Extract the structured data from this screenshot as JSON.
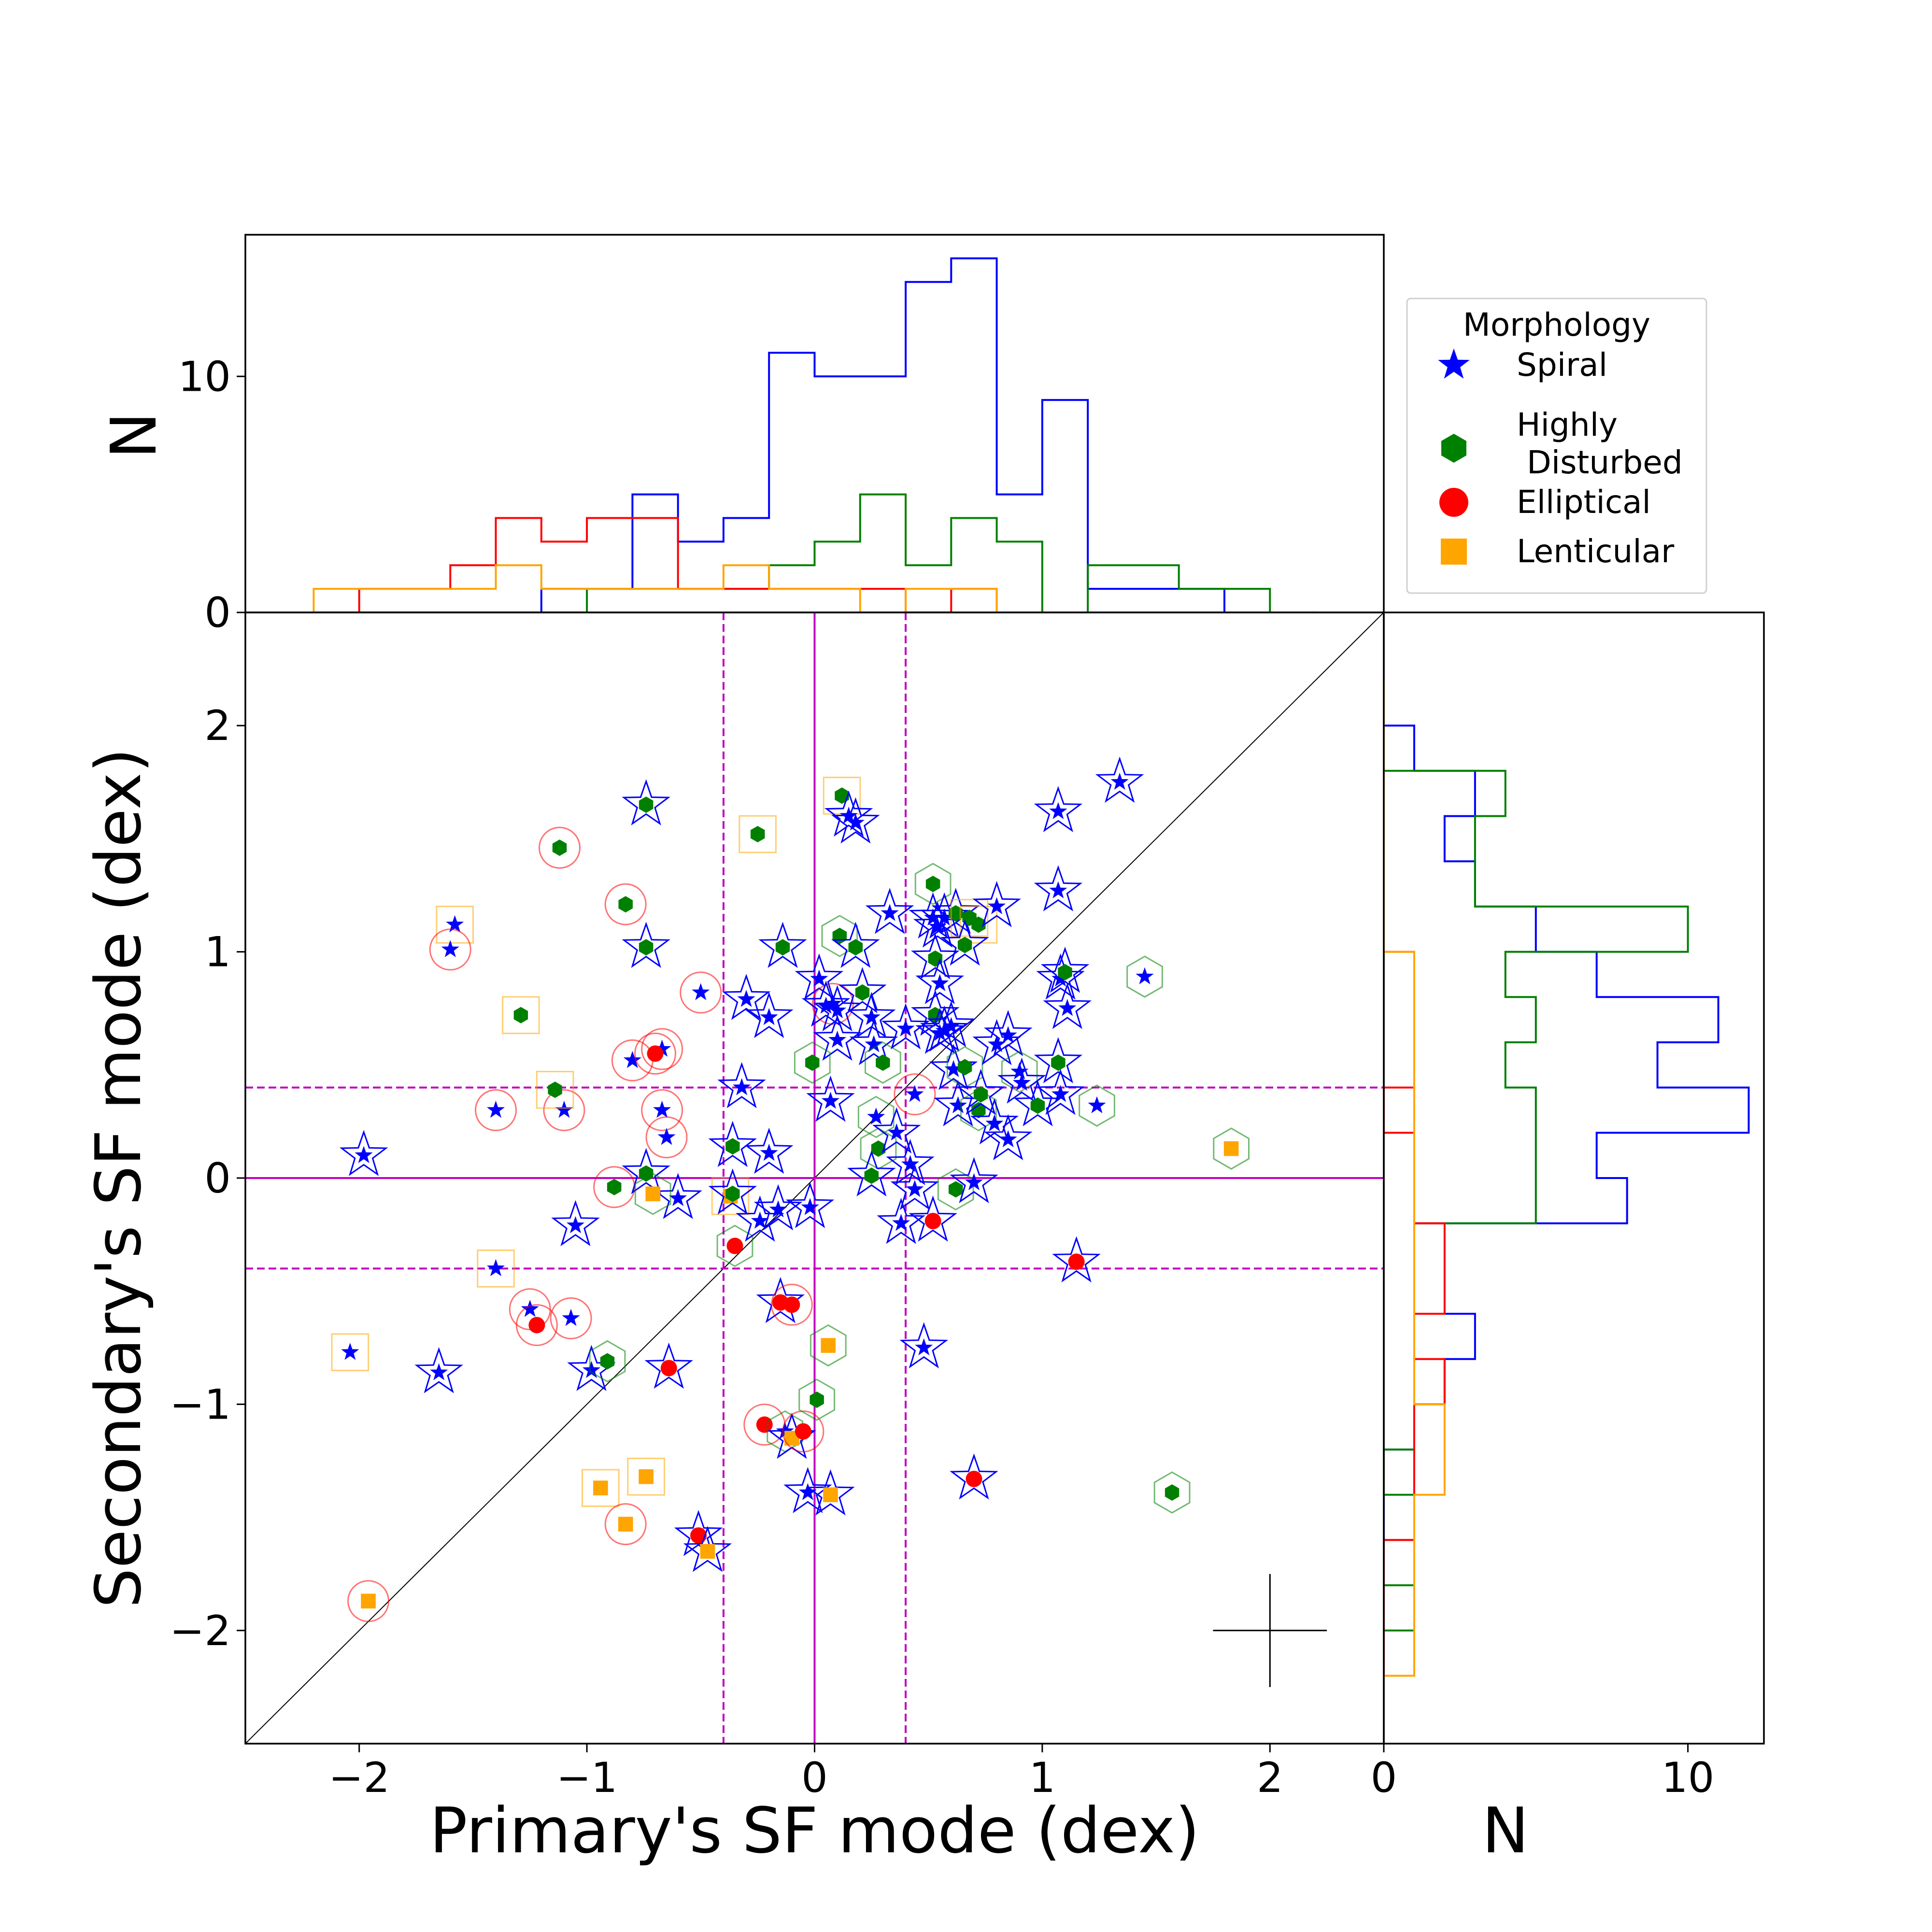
{
  "chart_data": {
    "type": "scatter",
    "xlabel": "Primary's SF mode (dex)",
    "ylabel": "Secondary's SF mode (dex)",
    "xlim": [
      -2.5,
      2.5
    ],
    "ylim": [
      -2.5,
      2.5
    ],
    "xticks": [
      "−2",
      "−1",
      "0",
      "1",
      "2"
    ],
    "yticks": [
      "−2",
      "−1",
      "0",
      "1",
      "2"
    ],
    "reference_lines": {
      "diagonal": "y = x",
      "solid_at": 0,
      "dashed_at": [
        -0.4,
        0.4
      ]
    },
    "error_cross": {
      "x": 2.0,
      "y": -2.0,
      "xerr": 0.25,
      "yerr": 0.25
    },
    "legend": {
      "title": "Morphology",
      "entries": [
        {
          "label": "Spiral",
          "marker": "star",
          "color": "#0000ff"
        },
        {
          "label": "Highly\n Disturbed",
          "marker": "hexagon",
          "color": "#008000"
        },
        {
          "label": "Elliptical",
          "marker": "circle",
          "color": "#ff0000"
        },
        {
          "label": "Lenticular",
          "marker": "square",
          "color": "#ffa500"
        }
      ]
    },
    "points": [
      {
        "x": -1.98,
        "y": 0.1,
        "in": "spiral",
        "out": "spiral"
      },
      {
        "x": -1.58,
        "y": 1.12,
        "in": "spiral",
        "out": "lenticular"
      },
      {
        "x": -1.6,
        "y": 1.01,
        "in": "spiral",
        "out": "elliptical"
      },
      {
        "x": -1.4,
        "y": 0.3,
        "in": "spiral",
        "out": "elliptical"
      },
      {
        "x": -1.4,
        "y": -0.4,
        "in": "spiral",
        "out": "lenticular"
      },
      {
        "x": -1.65,
        "y": -0.86,
        "in": "spiral",
        "out": "spiral"
      },
      {
        "x": -2.04,
        "y": -0.77,
        "in": "spiral",
        "out": "lenticular"
      },
      {
        "x": -1.25,
        "y": -0.58,
        "in": "spiral",
        "out": "elliptical"
      },
      {
        "x": -1.07,
        "y": -0.62,
        "in": "spiral",
        "out": "elliptical"
      },
      {
        "x": -1.22,
        "y": -0.65,
        "in": "elliptical",
        "out": "elliptical"
      },
      {
        "x": -1.1,
        "y": 0.3,
        "in": "spiral",
        "out": "elliptical"
      },
      {
        "x": -1.05,
        "y": -0.21,
        "in": "spiral",
        "out": "spiral"
      },
      {
        "x": -0.98,
        "y": -0.85,
        "in": "spiral",
        "out": "spiral"
      },
      {
        "x": -1.12,
        "y": 1.46,
        "in": "disturbed",
        "out": "elliptical"
      },
      {
        "x": -1.29,
        "y": 0.72,
        "in": "disturbed",
        "out": "lenticular"
      },
      {
        "x": -1.14,
        "y": 0.39,
        "in": "disturbed",
        "out": "lenticular"
      },
      {
        "x": -0.91,
        "y": -0.81,
        "in": "disturbed",
        "out": "disturbed"
      },
      {
        "x": -0.88,
        "y": -0.04,
        "in": "disturbed",
        "out": "elliptical"
      },
      {
        "x": -0.83,
        "y": 1.21,
        "in": "disturbed",
        "out": "elliptical"
      },
      {
        "x": -0.74,
        "y": 1.65,
        "in": "disturbed",
        "out": "spiral"
      },
      {
        "x": -0.74,
        "y": 1.02,
        "in": "disturbed",
        "out": "spiral"
      },
      {
        "x": -0.74,
        "y": 0.02,
        "in": "disturbed",
        "out": "spiral"
      },
      {
        "x": -0.8,
        "y": 0.52,
        "in": "spiral",
        "out": "elliptical"
      },
      {
        "x": -0.67,
        "y": 0.57,
        "in": "spiral",
        "out": "elliptical"
      },
      {
        "x": -0.7,
        "y": 0.55,
        "in": "elliptical",
        "out": "elliptical"
      },
      {
        "x": -0.67,
        "y": 0.3,
        "in": "spiral",
        "out": "elliptical"
      },
      {
        "x": -0.65,
        "y": 0.18,
        "in": "spiral",
        "out": "elliptical"
      },
      {
        "x": -0.5,
        "y": 0.82,
        "in": "spiral",
        "out": "elliptical"
      },
      {
        "x": -0.6,
        "y": -0.09,
        "in": "spiral",
        "out": "spiral"
      },
      {
        "x": -0.64,
        "y": -0.84,
        "in": "elliptical",
        "out": "spiral"
      },
      {
        "x": -0.71,
        "y": -0.07,
        "in": "lenticular",
        "out": "disturbed"
      },
      {
        "x": -0.25,
        "y": 1.52,
        "in": "disturbed",
        "out": "lenticular"
      },
      {
        "x": -0.3,
        "y": 0.79,
        "in": "spiral",
        "out": "spiral"
      },
      {
        "x": -0.2,
        "y": 0.71,
        "in": "spiral",
        "out": "spiral"
      },
      {
        "x": -0.32,
        "y": 0.4,
        "in": "spiral",
        "out": "spiral"
      },
      {
        "x": -0.36,
        "y": 0.14,
        "in": "disturbed",
        "out": "spiral"
      },
      {
        "x": -0.2,
        "y": 0.11,
        "in": "spiral",
        "out": "spiral"
      },
      {
        "x": -0.37,
        "y": -0.08,
        "in": "lenticular",
        "out": "lenticular"
      },
      {
        "x": -0.36,
        "y": -0.07,
        "in": "disturbed",
        "out": "spiral"
      },
      {
        "x": -0.35,
        "y": -0.3,
        "in": "elliptical",
        "out": "disturbed"
      },
      {
        "x": -0.24,
        "y": -0.19,
        "in": "spiral",
        "out": "spiral"
      },
      {
        "x": -0.16,
        "y": -0.14,
        "in": "spiral",
        "out": "spiral"
      },
      {
        "x": -0.14,
        "y": 1.02,
        "in": "disturbed",
        "out": "spiral"
      },
      {
        "x": -0.15,
        "y": -0.55,
        "in": "elliptical",
        "out": "spiral"
      },
      {
        "x": -0.1,
        "y": -0.56,
        "in": "elliptical",
        "out": "elliptical"
      },
      {
        "x": -0.22,
        "y": -1.09,
        "in": "elliptical",
        "out": "elliptical"
      },
      {
        "x": -0.13,
        "y": -1.12,
        "in": "spiral",
        "out": "disturbed"
      },
      {
        "x": -0.1,
        "y": -1.15,
        "in": "lenticular",
        "out": "spiral"
      },
      {
        "x": -0.05,
        "y": -1.12,
        "in": "elliptical",
        "out": "elliptical"
      },
      {
        "x": -0.03,
        "y": -1.39,
        "in": "spiral",
        "out": "spiral"
      },
      {
        "x": -0.02,
        "y": -0.13,
        "in": "spiral",
        "out": "spiral"
      },
      {
        "x": 0.01,
        "y": -0.98,
        "in": "disturbed",
        "out": "disturbed"
      },
      {
        "x": 0.06,
        "y": -0.74,
        "in": "lenticular",
        "out": "disturbed"
      },
      {
        "x": 0.07,
        "y": -1.4,
        "in": "lenticular",
        "out": "spiral"
      },
      {
        "x": -0.51,
        "y": -1.58,
        "in": "elliptical",
        "out": "spiral"
      },
      {
        "x": -0.47,
        "y": -1.65,
        "in": "lenticular",
        "out": "spiral"
      },
      {
        "x": -0.94,
        "y": -1.37,
        "in": "lenticular",
        "out": "lenticular"
      },
      {
        "x": -0.74,
        "y": -1.32,
        "in": "lenticular",
        "out": "lenticular"
      },
      {
        "x": -0.83,
        "y": -1.53,
        "in": "lenticular",
        "out": "elliptical"
      },
      {
        "x": -1.96,
        "y": -1.87,
        "in": "lenticular",
        "out": "elliptical"
      },
      {
        "x": 0.12,
        "y": 1.69,
        "in": "disturbed",
        "out": "lenticular"
      },
      {
        "x": 0.15,
        "y": 1.6,
        "in": "spiral",
        "out": "spiral"
      },
      {
        "x": 0.18,
        "y": 1.57,
        "in": "spiral",
        "out": "spiral"
      },
      {
        "x": 0.11,
        "y": 1.07,
        "in": "disturbed",
        "out": "disturbed"
      },
      {
        "x": 0.18,
        "y": 1.02,
        "in": "disturbed",
        "out": "spiral"
      },
      {
        "x": 0.02,
        "y": 0.88,
        "in": "spiral",
        "out": "spiral"
      },
      {
        "x": 0.08,
        "y": 0.77,
        "in": "spiral",
        "out": "elliptical"
      },
      {
        "x": 0.1,
        "y": 0.74,
        "in": "spiral",
        "out": "spiral"
      },
      {
        "x": 0.05,
        "y": 0.76,
        "in": "spiral",
        "out": "spiral"
      },
      {
        "x": 0.1,
        "y": 0.61,
        "in": "spiral",
        "out": "spiral"
      },
      {
        "x": -0.01,
        "y": 0.51,
        "in": "disturbed",
        "out": "disturbed"
      },
      {
        "x": 0.07,
        "y": 0.34,
        "in": "spiral",
        "out": "spiral"
      },
      {
        "x": 0.21,
        "y": 0.82,
        "in": "disturbed",
        "out": "spiral"
      },
      {
        "x": 0.25,
        "y": 0.71,
        "in": "spiral",
        "out": "spiral"
      },
      {
        "x": 0.26,
        "y": 0.59,
        "in": "spiral",
        "out": "spiral"
      },
      {
        "x": 0.3,
        "y": 0.51,
        "in": "disturbed",
        "out": "disturbed"
      },
      {
        "x": 0.27,
        "y": 0.27,
        "in": "spiral",
        "out": "disturbed"
      },
      {
        "x": 0.28,
        "y": 0.13,
        "in": "disturbed",
        "out": "disturbed"
      },
      {
        "x": 0.36,
        "y": 0.2,
        "in": "spiral",
        "out": "spiral"
      },
      {
        "x": 0.25,
        "y": 0.01,
        "in": "disturbed",
        "out": "spiral"
      },
      {
        "x": 0.33,
        "y": 1.17,
        "in": "spiral",
        "out": "spiral"
      },
      {
        "x": 0.4,
        "y": 0.66,
        "in": "spiral",
        "out": "spiral"
      },
      {
        "x": 0.44,
        "y": 0.37,
        "in": "spiral",
        "out": "elliptical"
      },
      {
        "x": 0.42,
        "y": 0.06,
        "in": "spiral",
        "out": "spiral"
      },
      {
        "x": 0.44,
        "y": -0.05,
        "in": "spiral",
        "out": "spiral"
      },
      {
        "x": 0.38,
        "y": -0.2,
        "in": "spiral",
        "out": "spiral"
      },
      {
        "x": 0.48,
        "y": -0.75,
        "in": "spiral",
        "out": "spiral"
      },
      {
        "x": 0.52,
        "y": -0.19,
        "in": "elliptical",
        "out": "spiral"
      },
      {
        "x": 0.52,
        "y": 1.3,
        "in": "disturbed",
        "out": "disturbed"
      },
      {
        "x": 0.52,
        "y": 1.15,
        "in": "spiral",
        "out": "spiral"
      },
      {
        "x": 0.54,
        "y": 1.11,
        "in": "spiral",
        "out": "spiral"
      },
      {
        "x": 0.57,
        "y": 1.15,
        "in": "spiral",
        "out": "spiral"
      },
      {
        "x": 0.53,
        "y": 0.97,
        "in": "disturbed",
        "out": "spiral"
      },
      {
        "x": 0.55,
        "y": 0.86,
        "in": "spiral",
        "out": "spiral"
      },
      {
        "x": 0.53,
        "y": 0.72,
        "in": "disturbed",
        "out": "spiral"
      },
      {
        "x": 0.55,
        "y": 0.64,
        "in": "spiral",
        "out": "spiral"
      },
      {
        "x": 0.6,
        "y": 0.67,
        "in": "spiral",
        "out": "spiral"
      },
      {
        "x": 0.57,
        "y": 0.65,
        "in": "spiral",
        "out": "spiral"
      },
      {
        "x": 0.61,
        "y": 0.48,
        "in": "spiral",
        "out": "spiral"
      },
      {
        "x": 0.63,
        "y": 0.32,
        "in": "spiral",
        "out": "spiral"
      },
      {
        "x": 0.62,
        "y": 1.17,
        "in": "disturbed",
        "out": "spiral"
      },
      {
        "x": 0.68,
        "y": 1.15,
        "in": "disturbed",
        "out": "lenticular"
      },
      {
        "x": 0.72,
        "y": 1.12,
        "in": "disturbed",
        "out": "lenticular"
      },
      {
        "x": 0.66,
        "y": 1.03,
        "in": "disturbed",
        "out": "spiral"
      },
      {
        "x": 0.66,
        "y": 0.49,
        "in": "disturbed",
        "out": "disturbed"
      },
      {
        "x": 0.72,
        "y": 0.3,
        "in": "disturbed",
        "out": "disturbed"
      },
      {
        "x": 0.73,
        "y": 0.37,
        "in": "disturbed",
        "out": "spiral"
      },
      {
        "x": 0.79,
        "y": 0.24,
        "in": "spiral",
        "out": "spiral"
      },
      {
        "x": 0.62,
        "y": -0.05,
        "in": "disturbed",
        "out": "disturbed"
      },
      {
        "x": 0.7,
        "y": -0.02,
        "in": "spiral",
        "out": "spiral"
      },
      {
        "x": 0.7,
        "y": -1.33,
        "in": "elliptical",
        "out": "spiral"
      },
      {
        "x": 0.8,
        "y": 1.2,
        "in": "spiral",
        "out": "spiral"
      },
      {
        "x": 0.8,
        "y": 0.59,
        "in": "spiral",
        "out": "spiral"
      },
      {
        "x": 0.85,
        "y": 0.63,
        "in": "spiral",
        "out": "spiral"
      },
      {
        "x": 0.85,
        "y": 0.17,
        "in": "spiral",
        "out": "spiral"
      },
      {
        "x": 0.9,
        "y": 0.47,
        "in": "spiral",
        "out": "disturbed"
      },
      {
        "x": 0.91,
        "y": 0.42,
        "in": "spiral",
        "out": "spiral"
      },
      {
        "x": 0.98,
        "y": 0.32,
        "in": "disturbed",
        "out": "spiral"
      },
      {
        "x": 1.07,
        "y": 1.27,
        "in": "spiral",
        "out": "spiral"
      },
      {
        "x": 1.07,
        "y": 1.62,
        "in": "spiral",
        "out": "spiral"
      },
      {
        "x": 1.08,
        "y": 0.88,
        "in": "spiral",
        "out": "spiral"
      },
      {
        "x": 1.1,
        "y": 0.91,
        "in": "disturbed",
        "out": "spiral"
      },
      {
        "x": 1.11,
        "y": 0.75,
        "in": "spiral",
        "out": "spiral"
      },
      {
        "x": 1.07,
        "y": 0.51,
        "in": "disturbed",
        "out": "spiral"
      },
      {
        "x": 1.08,
        "y": 0.37,
        "in": "spiral",
        "out": "spiral"
      },
      {
        "x": 1.24,
        "y": 0.32,
        "in": "spiral",
        "out": "disturbed"
      },
      {
        "x": 1.15,
        "y": -0.37,
        "in": "elliptical",
        "out": "spiral"
      },
      {
        "x": 1.34,
        "y": 1.75,
        "in": "spiral",
        "out": "spiral"
      },
      {
        "x": 1.45,
        "y": 0.89,
        "in": "spiral",
        "out": "disturbed"
      },
      {
        "x": 1.57,
        "y": -1.39,
        "in": "disturbed",
        "out": "disturbed"
      },
      {
        "x": 1.83,
        "y": 0.13,
        "in": "lenticular",
        "out": "disturbed"
      }
    ],
    "top_histogram": {
      "ylim": [
        0,
        16
      ],
      "yticks": [
        "0",
        "10"
      ],
      "ylabel": "N",
      "bin_edges": [
        -2.2,
        -2.0,
        -1.8,
        -1.6,
        -1.4,
        -1.2,
        -1.0,
        -0.8,
        -0.6,
        -0.4,
        -0.2,
        0.0,
        0.2,
        0.4,
        0.6,
        0.8,
        1.0,
        1.2,
        1.4,
        1.6,
        1.8,
        2.0,
        2.2
      ],
      "series": [
        {
          "name": "Spiral",
          "color": "#0000ff",
          "values": [
            0,
            0,
            0,
            0,
            0,
            1,
            1,
            5,
            3,
            4,
            11,
            10,
            10,
            14,
            15,
            5,
            9,
            1,
            1,
            1,
            0,
            0
          ]
        },
        {
          "name": "Highly Disturbed",
          "color": "#008000",
          "values": [
            0,
            0,
            0,
            0,
            0,
            0,
            1,
            1,
            1,
            1,
            2,
            3,
            5,
            2,
            4,
            3,
            0,
            2,
            2,
            1,
            1,
            0
          ]
        },
        {
          "name": "Elliptical",
          "color": "#ff0000",
          "values": [
            0,
            1,
            1,
            2,
            4,
            3,
            4,
            4,
            1,
            1,
            1,
            1,
            1,
            0,
            1,
            0,
            0,
            0,
            0,
            0,
            0,
            0
          ]
        },
        {
          "name": "Lenticular",
          "color": "#ffa500",
          "values": [
            1,
            1,
            1,
            1,
            2,
            1,
            1,
            1,
            1,
            2,
            1,
            1,
            0,
            1,
            1,
            0,
            0,
            0,
            0,
            0,
            0,
            0
          ]
        }
      ]
    },
    "right_histogram": {
      "xlim": [
        0,
        12.5
      ],
      "xticks": [
        "0",
        "10"
      ],
      "xlabel": "N",
      "bin_edges": [
        -2.2,
        -2.0,
        -1.8,
        -1.6,
        -1.4,
        -1.2,
        -1.0,
        -0.8,
        -0.6,
        -0.4,
        -0.2,
        0.0,
        0.2,
        0.4,
        0.6,
        0.8,
        1.0,
        1.2,
        1.4,
        1.6,
        1.8,
        2.0,
        2.2
      ],
      "series": [
        {
          "name": "Spiral",
          "color": "#0000ff",
          "values": [
            0,
            0,
            0,
            0,
            0,
            1,
            2,
            3,
            1,
            1,
            8,
            7,
            12,
            9,
            11,
            7,
            5,
            3,
            2,
            3,
            1,
            0
          ]
        },
        {
          "name": "Highly Disturbed",
          "color": "#008000",
          "values": [
            0,
            1,
            0,
            1,
            0,
            1,
            1,
            1,
            1,
            1,
            5,
            5,
            5,
            4,
            5,
            4,
            10,
            3,
            3,
            4,
            0,
            0
          ]
        },
        {
          "name": "Elliptical",
          "color": "#ff0000",
          "values": [
            0,
            0,
            0,
            1,
            1,
            1,
            2,
            1,
            2,
            2,
            1,
            1,
            0,
            1,
            1,
            1,
            0,
            0,
            0,
            0,
            0,
            0
          ]
        },
        {
          "name": "Lenticular",
          "color": "#ffa500",
          "values": [
            1,
            1,
            1,
            1,
            2,
            2,
            1,
            1,
            1,
            1,
            1,
            1,
            1,
            1,
            1,
            1,
            0,
            0,
            0,
            0,
            0,
            0
          ]
        }
      ]
    }
  }
}
